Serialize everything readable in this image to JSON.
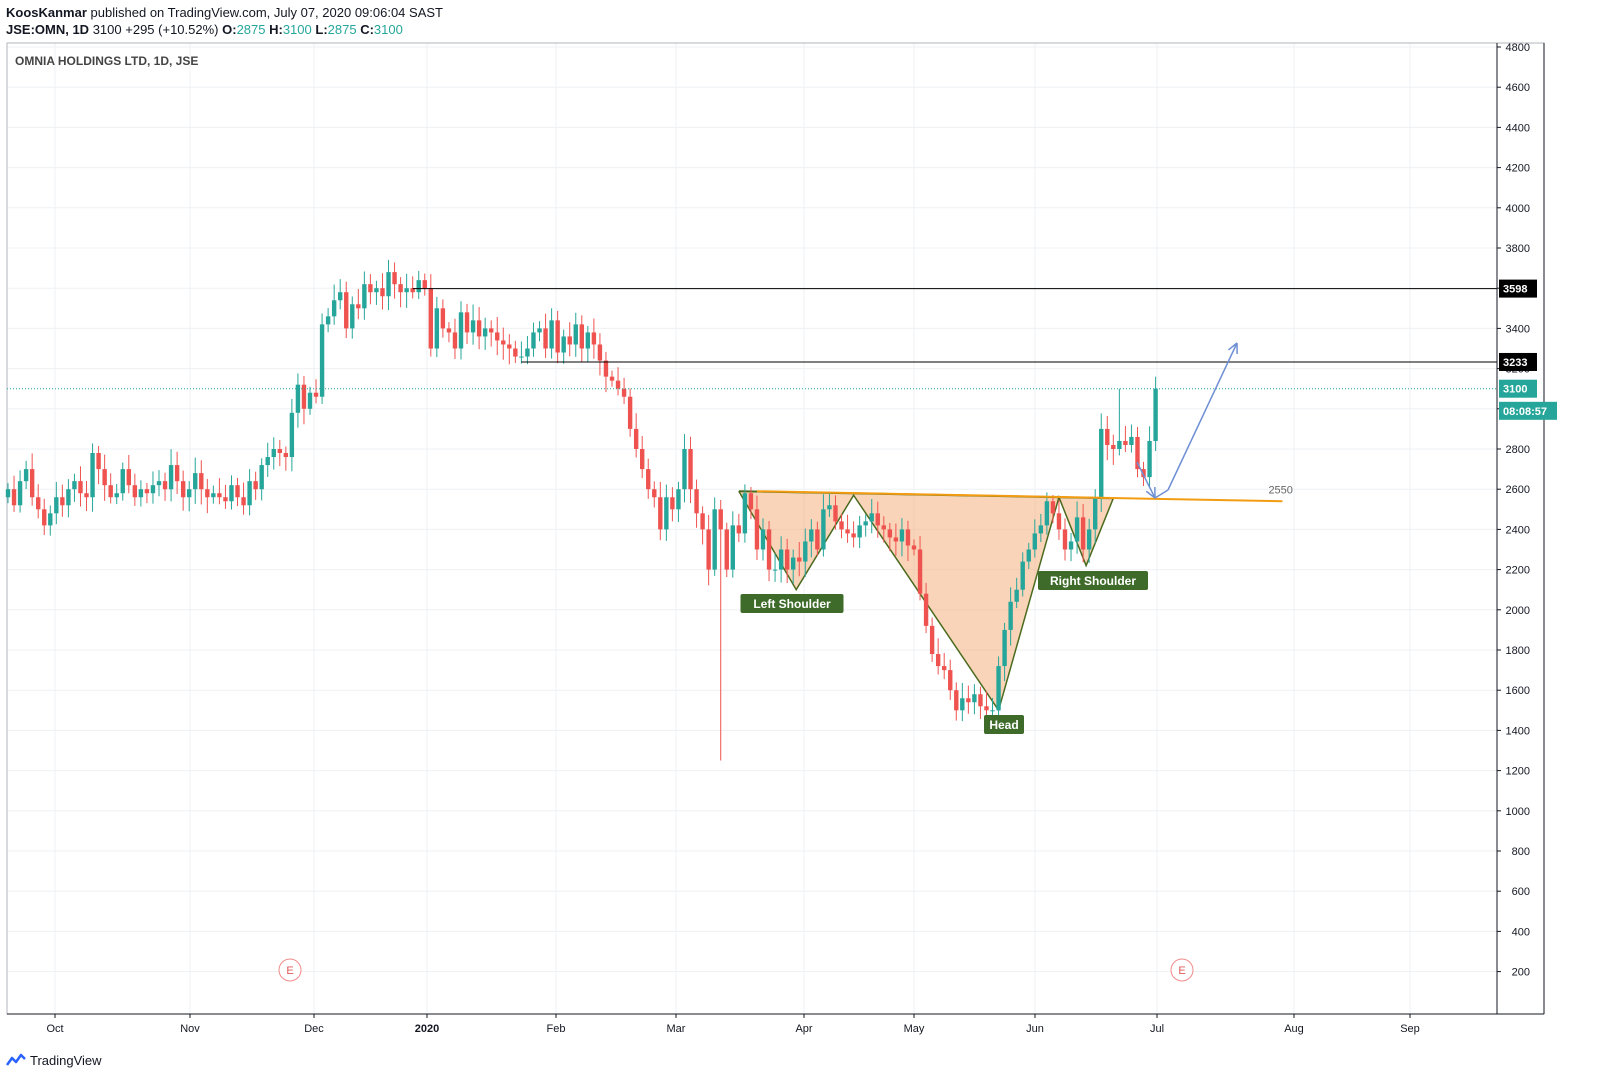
{
  "header": {
    "author": "KoosKanmar",
    "published": "published on TradingView.com, July 07, 2020 09:06:04 SAST",
    "symbol": "JSE:OMN, 1D",
    "last": "3100",
    "change": "+295 (+10.52%)",
    "o_label": "O:",
    "o_value": "2875",
    "h_label": "H:",
    "h_value": "3100",
    "l_label": "L:",
    "l_value": "2875",
    "c_label": "C:",
    "c_value": "3100"
  },
  "chart_title": "OMNIA HOLDINGS LTD, 1D, JSE",
  "footer": {
    "brand": "TradingView"
  },
  "colors": {
    "up": "#26a69a",
    "down": "#ef5350",
    "pattern_fill": "#f5b17f",
    "pattern_line": "#4a6b1e",
    "neckline": "#f39c12",
    "arrow": "#6e8fd4",
    "label_bg": "#3e6b2a"
  },
  "chart_data": {
    "type": "candlestick",
    "title": "OMNIA HOLDINGS LTD, 1D, JSE",
    "y_ticks": [
      4800,
      4600,
      4400,
      4200,
      4000,
      3800,
      3600,
      3400,
      3200,
      3000,
      2800,
      2600,
      2400,
      2200,
      2000,
      1800,
      1600,
      1400,
      1200,
      1000,
      800,
      600,
      400,
      200
    ],
    "ylim": [
      100,
      4800
    ],
    "x_ticks": [
      "Oct",
      "Nov",
      "Dec",
      "2020",
      "Feb",
      "Mar",
      "Apr",
      "May",
      "Jun",
      "Jul",
      "Aug",
      "Sep"
    ],
    "price_tags": [
      {
        "value": 3598,
        "label": "3598",
        "style": "black"
      },
      {
        "value": 3233,
        "label": "3233",
        "style": "black"
      },
      {
        "value": 3100,
        "label": "3100",
        "style": "teal"
      },
      {
        "value": 2990,
        "label": "08:08:57",
        "style": "teal"
      }
    ],
    "horizontal_lines": [
      {
        "value": 3598,
        "from_day": 67
      },
      {
        "value": 3233,
        "from_day": 85
      }
    ],
    "last_price": 3100,
    "neckline": {
      "label": "2550",
      "start": [
        124,
        2590
      ],
      "end": [
        211,
        2540
      ]
    },
    "pattern_labels": [
      "Left Shoulder",
      "Head",
      "Right Shoulder"
    ],
    "earnings_markers": [
      "E",
      "E"
    ],
    "closes": [
      2600,
      2520,
      2640,
      2700,
      2560,
      2500,
      2420,
      2480,
      2560,
      2520,
      2600,
      2640,
      2580,
      2560,
      2780,
      2700,
      2620,
      2560,
      2580,
      2700,
      2620,
      2560,
      2600,
      2580,
      2620,
      2640,
      2600,
      2720,
      2640,
      2560,
      2600,
      2680,
      2600,
      2560,
      2580,
      2560,
      2540,
      2620,
      2560,
      2520,
      2640,
      2600,
      2720,
      2760,
      2800,
      2780,
      2760,
      2980,
      3120,
      3000,
      3080,
      3060,
      3420,
      3460,
      3540,
      3580,
      3400,
      3520,
      3500,
      3620,
      3580,
      3600,
      3560,
      3680,
      3620,
      3580,
      3600,
      3580,
      3640,
      3600,
      3300,
      3500,
      3400,
      3380,
      3300,
      3480,
      3380,
      3440,
      3360,
      3400,
      3380,
      3340,
      3320,
      3300,
      3260,
      3260,
      3300,
      3380,
      3400,
      3300,
      3440,
      3280,
      3360,
      3320,
      3420,
      3300,
      3380,
      3320,
      3240,
      3160,
      3140,
      3100,
      3060,
      2900,
      2800,
      2700,
      2600,
      2560,
      2400,
      2560,
      2500,
      2600,
      2800,
      2600,
      2480,
      2400,
      2200,
      2500,
      2400,
      2200,
      2420,
      2380,
      2580,
      2500,
      2300,
      2400,
      2200,
      2200,
      2300,
      2200,
      2260,
      2240,
      2340,
      2400,
      2300,
      2500,
      2520,
      2440,
      2400,
      2380,
      2360,
      2420,
      2440,
      2480,
      2420,
      2400,
      2360,
      2340,
      2400,
      2320,
      2300,
      2080,
      1920,
      1780,
      1720,
      1700,
      1600,
      1500,
      1560,
      1540,
      1580,
      1520,
      1500,
      1500,
      1720,
      1900,
      2040,
      2100,
      2240,
      2300,
      2380,
      2420,
      2540,
      2480,
      2400,
      2300,
      2340,
      2460,
      2300,
      2400,
      2560,
      2900,
      2820,
      2800,
      2840,
      2820,
      2860,
      2700,
      2660,
      2840,
      3100
    ],
    "dates_note": ""
  }
}
